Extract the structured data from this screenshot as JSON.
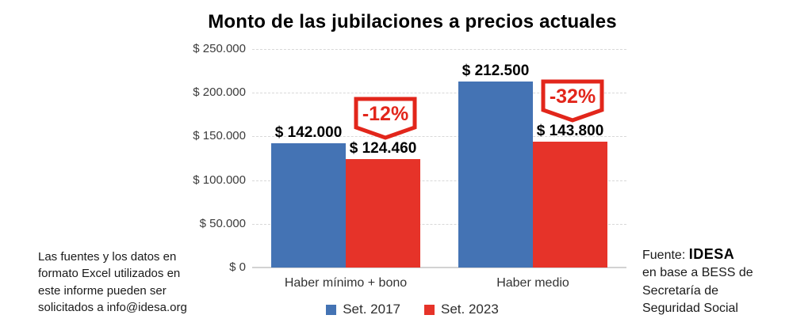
{
  "chart_data": {
    "type": "bar",
    "title": "Monto de las jubilaciones a precios actuales",
    "categories": [
      "Haber mínimo + bono",
      "Haber medio"
    ],
    "series": [
      {
        "name": "Set. 2017",
        "color": "#4473b4",
        "values": [
          142000,
          212500
        ],
        "value_labels": [
          "$ 142.000",
          "$ 212.500"
        ]
      },
      {
        "name": "Set. 2023",
        "color": "#e63329",
        "values": [
          124460,
          143800
        ],
        "value_labels": [
          "$ 124.460",
          "$ 143.800"
        ]
      }
    ],
    "annotations": [
      {
        "text": "-12%",
        "category_index": 0,
        "series_index": 1,
        "color": "#e2261b"
      },
      {
        "text": "-32%",
        "category_index": 1,
        "series_index": 1,
        "color": "#e2261b"
      }
    ],
    "y_axis": {
      "min": 0,
      "max": 250000,
      "ticks": [
        {
          "label": "$ 250.000",
          "value": 250000
        },
        {
          "label": "$ 200.000",
          "value": 200000
        },
        {
          "label": "$ 150.000",
          "value": 150000
        },
        {
          "label": "$ 100.000",
          "value": 100000
        },
        {
          "label": "$ 50.000",
          "value": 50000
        },
        {
          "label": "$ 0",
          "value": 0
        }
      ]
    },
    "grid": {
      "style": "dashed",
      "color": "#d8d8d8"
    },
    "legend_position": "bottom"
  },
  "footnote_left": {
    "text": "Las fuentes y los datos en formato Excel utilizados en este informe pueden ser solicitados a info@idesa.org"
  },
  "source_note": {
    "prefix": "Fuente: ",
    "brand": "IDESA",
    "rest": "en base a BESS de Secretaría de Seguridad Social"
  }
}
